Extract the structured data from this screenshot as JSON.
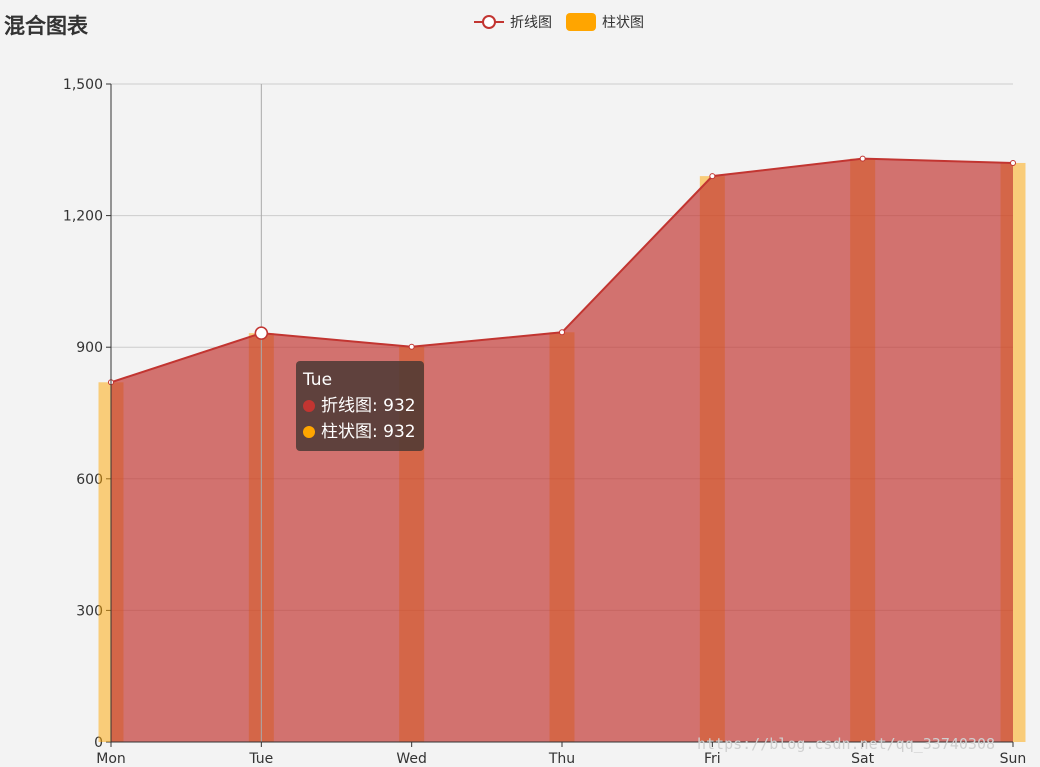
{
  "chart_data": {
    "type": "bar",
    "title": "混合图表",
    "categories": [
      "Mon",
      "Tue",
      "Wed",
      "Thu",
      "Fri",
      "Sat",
      "Sun"
    ],
    "series": [
      {
        "name": "折线图",
        "type": "line",
        "area": true,
        "values": [
          820,
          932,
          901,
          934,
          1290,
          1330,
          1320
        ],
        "color": "#c23531"
      },
      {
        "name": "柱状图",
        "type": "bar",
        "values": [
          820,
          932,
          901,
          934,
          1290,
          1330,
          1320
        ],
        "color": "#ffa500"
      }
    ],
    "ylim": [
      0,
      1500
    ],
    "yticks": [
      "0",
      "300",
      "600",
      "900",
      "1,200",
      "1,500"
    ],
    "grid": true,
    "legend_position": "top-center",
    "tooltip": {
      "category": "Tue",
      "rows": [
        {
          "label": "折线图: 932",
          "color": "#c23531"
        },
        {
          "label": "柱状图: 932",
          "color": "#ffa500"
        }
      ]
    }
  },
  "watermark": "https://blog.csdn.net/qq_33740308"
}
